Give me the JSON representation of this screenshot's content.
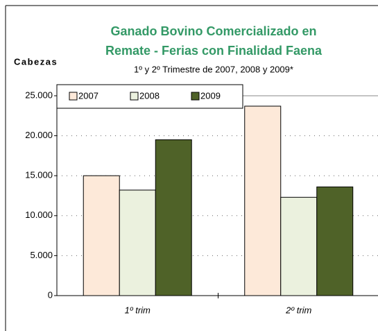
{
  "chart_data": {
    "type": "bar",
    "title": [
      "Ganado Bovino Comercializado en",
      "Remate - Ferias con Finalidad Faena"
    ],
    "subtitle": "1º y 2º Trimestre de 2007, 2008 y 2009*",
    "y_label": "Cabezas",
    "categories": [
      "1º trim",
      "2º trim"
    ],
    "series": [
      {
        "name": "2007",
        "color": "#fde9d9",
        "values": [
          15000,
          23700
        ]
      },
      {
        "name": "2008",
        "color": "#ebf1de",
        "values": [
          13200,
          12300
        ]
      },
      {
        "name": "2009",
        "color": "#4f6228",
        "values": [
          19500,
          13600
        ]
      }
    ],
    "ylim": [
      0,
      25000
    ],
    "yticks": [
      0,
      {
        "value": 5000,
        "label": "5.000"
      },
      {
        "value": 10000,
        "label": "10.000"
      },
      {
        "value": 15000,
        "label": "15.000"
      },
      {
        "value": 20000,
        "label": "20.000"
      },
      {
        "value": 25000,
        "label": "25.000"
      }
    ],
    "grid": true,
    "legend": "top-left"
  }
}
